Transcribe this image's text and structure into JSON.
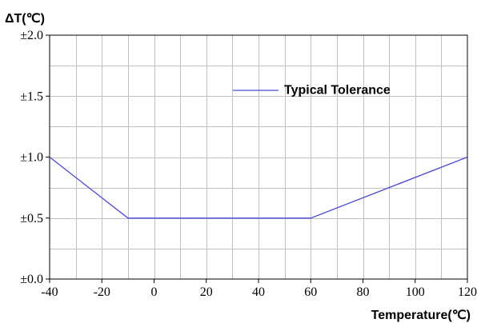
{
  "chart_data": {
    "type": "line",
    "ylabel": "ΔT(℃)",
    "xlabel": "Temperature(℃)",
    "xlim": [
      -40,
      120
    ],
    "ylim": [
      0,
      2.0
    ],
    "x_ticks": [
      -40,
      -20,
      0,
      20,
      40,
      60,
      80,
      100,
      120
    ],
    "x_tick_labels": [
      "-40",
      "-20",
      "0",
      "20",
      "40",
      "60",
      "80",
      "100",
      "120"
    ],
    "y_ticks": [
      0,
      0.5,
      1.0,
      1.5,
      2.0
    ],
    "y_tick_labels": [
      "±0.0",
      "±0.5",
      "±1.0",
      "±1.5",
      "±2.0"
    ],
    "x_minor_step": 10,
    "y_minor_step": 0.25,
    "grid": true,
    "legend_position": "top-right",
    "series": [
      {
        "name": "Typical Tolerance",
        "color": "#4a4ae0",
        "x": [
          -40,
          -10,
          60,
          120
        ],
        "y": [
          1.0,
          0.5,
          0.5,
          1.0
        ]
      }
    ]
  }
}
